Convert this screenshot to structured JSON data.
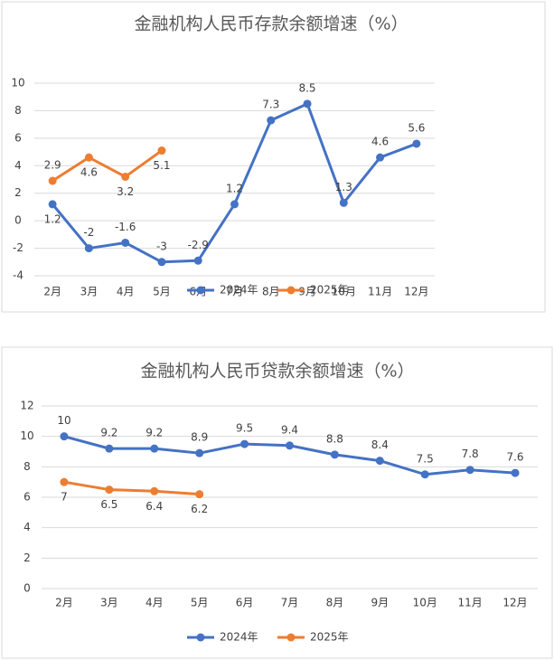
{
  "chart_data": [
    {
      "type": "line",
      "title": "金融机构人民币存款余额增速（%）",
      "categories": [
        "2月",
        "3月",
        "4月",
        "5月",
        "6月",
        "7月",
        "8月",
        "9月",
        "10月",
        "11月",
        "12月"
      ],
      "series": [
        {
          "name": "2024年",
          "color": "#4472c4",
          "values": [
            1.2,
            -2,
            -1.6,
            -3,
            -2.9,
            1.2,
            7.3,
            8.5,
            1.3,
            4.6,
            5.6
          ]
        },
        {
          "name": "2025年",
          "color": "#ed7d31",
          "values": [
            2.9,
            4.6,
            3.2,
            5.1,
            null,
            null,
            null,
            null,
            null,
            null,
            null
          ]
        }
      ],
      "ylim": [
        -4,
        10
      ],
      "yticks": [
        -4,
        -2,
        0,
        2,
        4,
        6,
        8,
        10
      ],
      "grid": true,
      "legend": "bottom"
    },
    {
      "type": "line",
      "title": "金融机构人民币贷款余额增速（%）",
      "categories": [
        "2月",
        "3月",
        "4月",
        "5月",
        "6月",
        "7月",
        "8月",
        "9月",
        "10月",
        "11月",
        "12月"
      ],
      "series": [
        {
          "name": "2024年",
          "color": "#4472c4",
          "values": [
            10,
            9.2,
            9.2,
            8.9,
            9.5,
            9.4,
            8.8,
            8.4,
            7.5,
            7.8,
            7.6
          ]
        },
        {
          "name": "2025年",
          "color": "#ed7d31",
          "values": [
            7,
            6.5,
            6.4,
            6.2,
            null,
            null,
            null,
            null,
            null,
            null,
            null
          ]
        }
      ],
      "ylim": [
        0,
        12
      ],
      "yticks": [
        0,
        2,
        4,
        6,
        8,
        10,
        12
      ],
      "grid": true,
      "legend": "bottom"
    }
  ]
}
